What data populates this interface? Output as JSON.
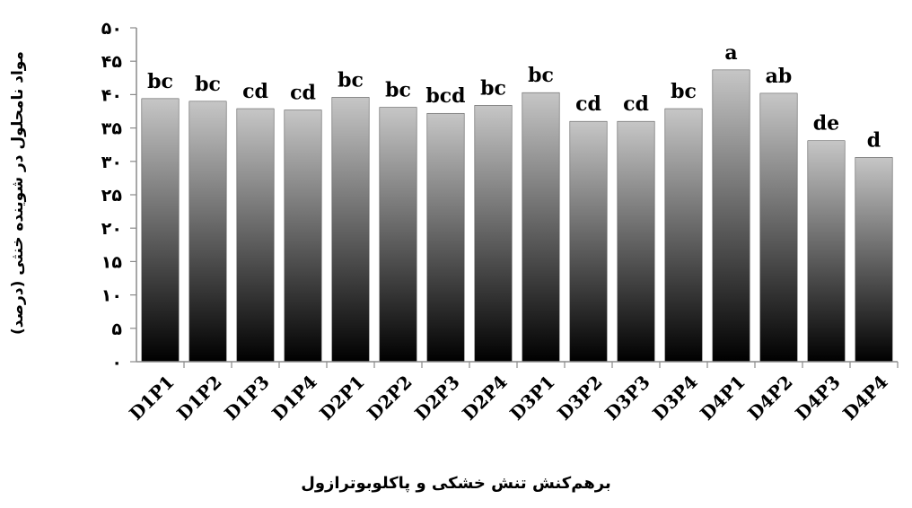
{
  "chart_data": {
    "type": "bar",
    "title": "",
    "xlabel": "برهم‌کنش تنش خشکی و پاکلوبوترازول",
    "ylabel": "مواد نامحلول در شوینده خنثی (درصد)",
    "ylim": [
      0,
      50
    ],
    "yticks": [
      0,
      5,
      10,
      15,
      20,
      25,
      30,
      35,
      40,
      45,
      50
    ],
    "ytick_labels": [
      "۰",
      "۵",
      "۱۰",
      "۱۵",
      "۲۰",
      "۲۵",
      "۳۰",
      "۳۵",
      "۴۰",
      "۴۵",
      "۵۰"
    ],
    "categories": [
      "D1P1",
      "D1P2",
      "D1P3",
      "D1P4",
      "D2P1",
      "D2P2",
      "D2P3",
      "D2P4",
      "D3P1",
      "D3P2",
      "D3P3",
      "D3P4",
      "D4P1",
      "D4P2",
      "D4P3",
      "D4P4"
    ],
    "values": [
      39.4,
      39.0,
      37.9,
      37.7,
      39.6,
      38.1,
      37.2,
      38.4,
      40.3,
      36.0,
      36.0,
      37.9,
      43.7,
      40.2,
      33.1,
      30.6
    ],
    "annotations": [
      "bc",
      "bc",
      "cd",
      "cd",
      "bc",
      "bc",
      "bcd",
      "bc",
      "bc",
      "cd",
      "cd",
      "bc",
      "a",
      "ab",
      "de",
      "d"
    ],
    "grid": false,
    "legend": "none",
    "bar_gradient": [
      "#c6c6c6",
      "#000000"
    ]
  }
}
